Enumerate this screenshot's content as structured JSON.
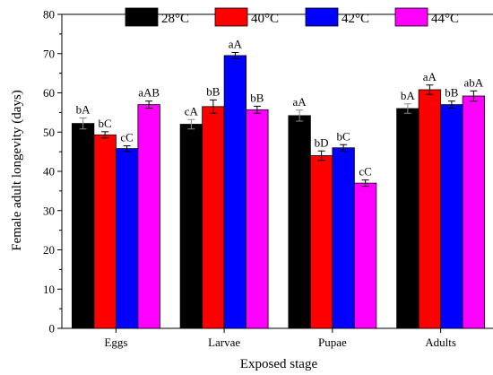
{
  "chart_data": {
    "type": "bar",
    "xlabel": "Exposed stage",
    "ylabel": "Female adult longevity (days)",
    "categories": [
      "Eggs",
      "Larvae",
      "Pupae",
      "Adults"
    ],
    "ylim": [
      0,
      80
    ],
    "yticks": [
      "0",
      "10",
      "20",
      "30",
      "40",
      "50",
      "60",
      "70",
      "80"
    ],
    "legend_position": "top",
    "grid": false,
    "series": [
      {
        "name": "28°C",
        "color": "#000000",
        "values": [
          52.2,
          52.0,
          54.2,
          56.0
        ],
        "errors": [
          1.4,
          1.2,
          1.4,
          1.2
        ],
        "labels": [
          "bA",
          "cA",
          "aA",
          "bA"
        ]
      },
      {
        "name": "40°C",
        "color": "#ff0000",
        "values": [
          49.3,
          56.5,
          44.0,
          60.8
        ],
        "errors": [
          0.8,
          1.7,
          1.2,
          1.2
        ],
        "labels": [
          "bC",
          "bB",
          "bD",
          "aA"
        ]
      },
      {
        "name": "42°C",
        "color": "#0000ff",
        "values": [
          45.8,
          69.5,
          46.0,
          57.0
        ],
        "errors": [
          0.7,
          0.8,
          0.8,
          0.9
        ],
        "labels": [
          "cC",
          "aA",
          "bC",
          "bB"
        ]
      },
      {
        "name": "44°C",
        "color": "#ff00ff",
        "values": [
          57.0,
          55.7,
          37.0,
          59.2
        ],
        "errors": [
          0.9,
          0.9,
          0.8,
          1.3
        ],
        "labels": [
          "aAB",
          "bB",
          "cC",
          "abA"
        ]
      }
    ]
  }
}
